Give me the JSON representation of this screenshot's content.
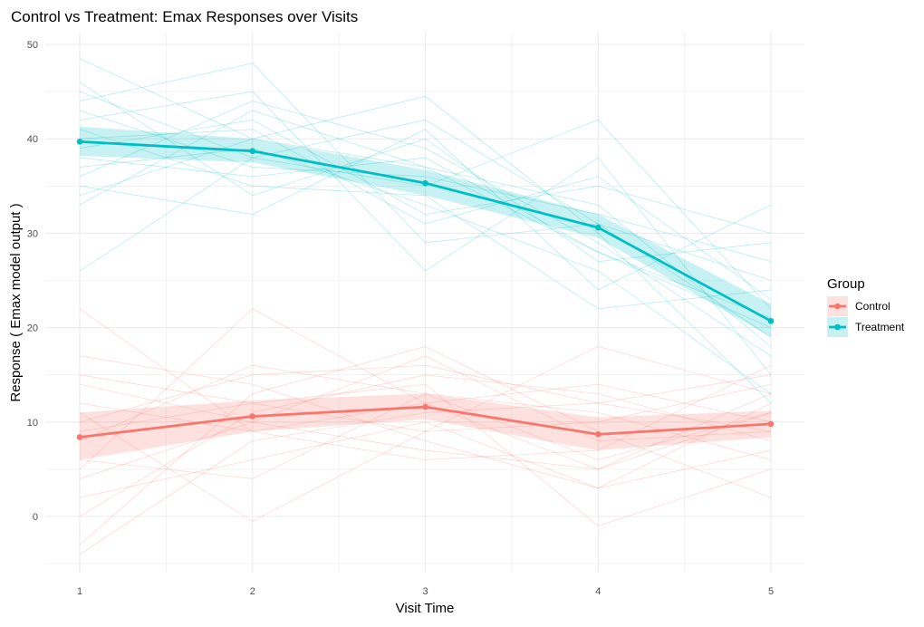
{
  "chart_data": {
    "type": "line",
    "title": "Control vs Treatment: Emax Responses over Visits",
    "xlabel": "Visit Time",
    "ylabel": "Response ( Emax model output )",
    "x": [
      1,
      2,
      3,
      4,
      5
    ],
    "x_ticks": [
      "1",
      "2",
      "3",
      "4",
      "5"
    ],
    "y_ticks": [
      "0",
      "10",
      "20",
      "30",
      "40",
      "50"
    ],
    "xlim": [
      0.8,
      5.2
    ],
    "ylim": [
      -5.2,
      51.5
    ],
    "grid": true,
    "legend": {
      "title": "Group",
      "placement": "right"
    },
    "series": [
      {
        "name": "Control",
        "color": "#F8766D",
        "mean": [
          8.4,
          10.6,
          11.6,
          8.7,
          9.8
        ],
        "ci_lower": [
          6.0,
          9.0,
          10.3,
          7.0,
          8.4
        ],
        "ci_upper": [
          11.0,
          12.3,
          13.0,
          10.5,
          11.2
        ],
        "individuals": [
          [
            22,
            9,
            12,
            5,
            11
          ],
          [
            17,
            14,
            8,
            3,
            7
          ],
          [
            -3,
            13,
            18,
            9,
            2
          ],
          [
            5,
            22,
            12,
            14,
            10
          ],
          [
            11,
            -0.5,
            9,
            18,
            13
          ],
          [
            9,
            12,
            14,
            -1,
            5
          ],
          [
            -4,
            8,
            11,
            12,
            15
          ],
          [
            14,
            10,
            17,
            8,
            9
          ],
          [
            2,
            6,
            10,
            3,
            12
          ],
          [
            8,
            16,
            13,
            11,
            6
          ],
          [
            12,
            9,
            6,
            7,
            16
          ],
          [
            0,
            11,
            15,
            13,
            8
          ],
          [
            15,
            12,
            9,
            10,
            14
          ],
          [
            6,
            4,
            13,
            6,
            11
          ],
          [
            10,
            15,
            16,
            12,
            9
          ],
          [
            4,
            10,
            7,
            5,
            13
          ]
        ]
      },
      {
        "name": "Treatment",
        "color": "#00BFC4",
        "mean": [
          39.7,
          38.7,
          35.3,
          30.6,
          20.7
        ],
        "ci_lower": [
          38.2,
          37.5,
          34.0,
          29.5,
          19.0
        ],
        "ci_upper": [
          41.3,
          40.0,
          36.7,
          32.0,
          22.5
        ],
        "individuals": [
          [
            48.5,
            40,
            44.5,
            30,
            12
          ],
          [
            26,
            38,
            35,
            42,
            22
          ],
          [
            44,
            48,
            29,
            31,
            25
          ],
          [
            35,
            32,
            41,
            24,
            33
          ],
          [
            42,
            45,
            26,
            38,
            15
          ],
          [
            38,
            36,
            38,
            28,
            20
          ],
          [
            33,
            43,
            37,
            33,
            18
          ],
          [
            46,
            34,
            40,
            27,
            29
          ],
          [
            40,
            41,
            31,
            36,
            23
          ],
          [
            37,
            39,
            33,
            26,
            13
          ],
          [
            43,
            37,
            36,
            32,
            27
          ],
          [
            36,
            44,
            39,
            29,
            17
          ],
          [
            41,
            35,
            34,
            22,
            24
          ],
          [
            39,
            42,
            32,
            35,
            30
          ],
          [
            45,
            38,
            42,
            31,
            19
          ],
          [
            34,
            40,
            37,
            28,
            21
          ]
        ]
      }
    ]
  }
}
